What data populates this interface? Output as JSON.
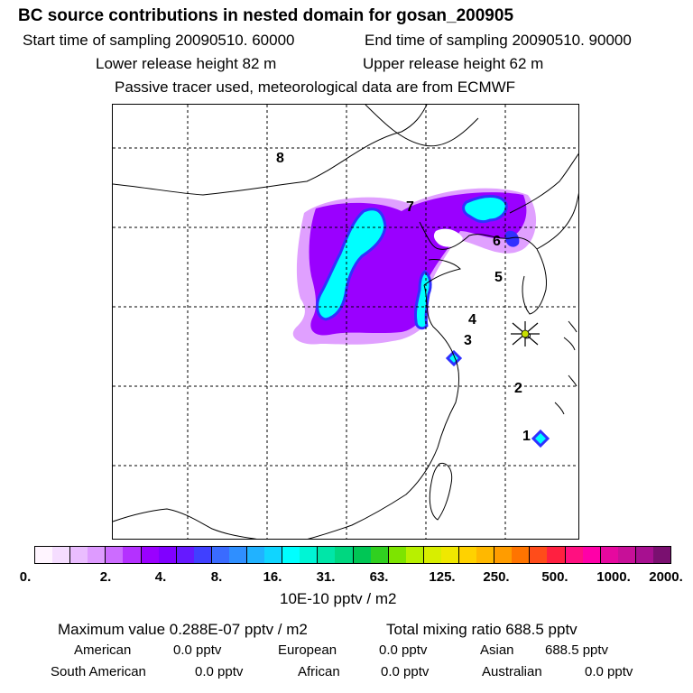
{
  "title": "BC  source contributions in nested domain for gosan_200905",
  "header": {
    "start_time": "Start time of sampling 20090510. 60000",
    "end_time": "End time of sampling 20090510. 90000",
    "lower_release": "Lower release height   82 m",
    "upper_release": "Upper release height   62 m",
    "tracer_note": "Passive tracer used, meteorological data are from ECMWF"
  },
  "map": {
    "receptor_marker": "Gosan station star",
    "region_labels": [
      "1",
      "2",
      "3",
      "4",
      "5",
      "6",
      "7",
      "8"
    ],
    "max_band": "16.",
    "field_colors": {
      "low": "#dd77ff",
      "mid": "#9a00ff",
      "high": "#00ffff",
      "edge": "#3030ff"
    }
  },
  "colorbar": {
    "labels": [
      "0.",
      "2.",
      "4.",
      "8.",
      "16.",
      "31.",
      "63.",
      "125.",
      "250.",
      "500.",
      "1000.",
      "2000."
    ],
    "colors": [
      [
        "#fff5ff",
        "#f5ddff"
      ],
      [
        "#eabdff",
        "#de9bff"
      ],
      [
        "#cc6cff",
        "#b431ff"
      ],
      [
        "#9a00ff",
        "#8000ff"
      ],
      [
        "#6619ff",
        "#4040ff"
      ],
      [
        "#3a6bff",
        "#2f8fff"
      ],
      [
        "#21b2ff",
        "#10d5ff"
      ],
      [
        "#00ffff",
        "#00f5d5"
      ],
      [
        "#00e6a8",
        "#00d780"
      ],
      [
        "#00c655",
        "#30d020"
      ],
      [
        "#7de400",
        "#b8f000"
      ],
      [
        "#d8ee00",
        "#f0e800"
      ],
      [
        "#ffd200",
        "#ffb800"
      ],
      [
        "#ff9c00",
        "#ff7400"
      ],
      [
        "#ff4c1a",
        "#ff2040"
      ],
      [
        "#ff1080",
        "#ff00a8"
      ],
      [
        "#e6089f",
        "#c71098"
      ],
      [
        "#a71090",
        "#7a1070"
      ]
    ]
  },
  "units": "10E-10 pptv / m2",
  "stats": {
    "max_value": "Maximum value  0.288E-07 pptv / m2",
    "total_mixing": "Total mixing ratio       688.5 pptv"
  },
  "regions": {
    "american_label": "American",
    "american_value": "0.0 pptv",
    "european_label": "European",
    "european_value": "0.0 pptv",
    "asian_label": "Asian",
    "asian_value": "688.5 pptv",
    "south_american_label": "South American",
    "south_american_value": "0.0 pptv",
    "african_label": "African",
    "african_value": "0.0 pptv",
    "australian_label": "Australian",
    "australian_value": "0.0 pptv"
  }
}
